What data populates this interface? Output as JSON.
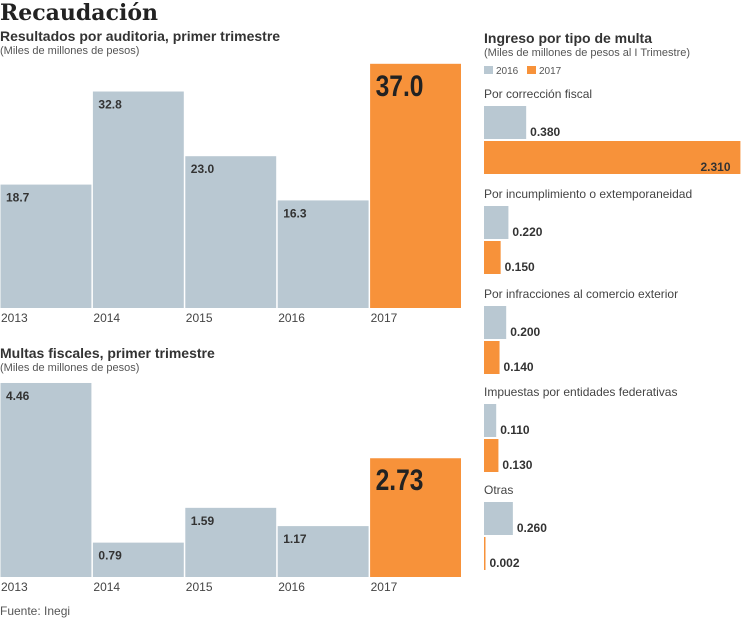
{
  "title": "Recaudación",
  "source": "Fuente: Inegi",
  "colors": {
    "gray": "#b9c8d2",
    "orange": "#f7923a"
  },
  "chart_data": [
    {
      "type": "bar",
      "title": "Resultados por auditoria, primer trimestre",
      "subtitle": "(Miles de millones de pesos)",
      "categories": [
        "2013",
        "2014",
        "2015",
        "2016",
        "2017"
      ],
      "values": [
        18.7,
        32.8,
        23.0,
        16.3,
        37.0
      ],
      "labels": [
        "18.7",
        "32.8",
        "23.0",
        "16.3",
        "37.0"
      ],
      "highlight": "2017"
    },
    {
      "type": "bar",
      "title": "Multas fiscales, primer trimestre",
      "subtitle": "(Miles de millones de pesos)",
      "categories": [
        "2013",
        "2014",
        "2015",
        "2016",
        "2017"
      ],
      "values": [
        4.46,
        0.79,
        1.59,
        1.17,
        2.73
      ],
      "labels": [
        "4.46",
        "0.79",
        "1.59",
        "1.17",
        "2.73"
      ],
      "highlight": "2017"
    },
    {
      "type": "bar",
      "orientation": "horizontal",
      "title": "Ingreso por tipo de multa",
      "subtitle": "(Miles de millones de pesos al I Trimestre)",
      "legend": [
        "2016",
        "2017"
      ],
      "categories": [
        "Por corrección fiscal",
        "Por incumplimiento o extemporaneidad",
        "Por infracciones al comercio exterior",
        "Impuestas por entidades federativas",
        "Otras"
      ],
      "series": [
        {
          "name": "2016",
          "values": [
            0.38,
            0.22,
            0.2,
            0.11,
            0.26
          ],
          "labels": [
            "0.380",
            "0.220",
            "0.200",
            "0.110",
            "0.260"
          ]
        },
        {
          "name": "2017",
          "values": [
            2.31,
            0.15,
            0.14,
            0.13,
            0.002
          ],
          "labels": [
            "2.310",
            "0.150",
            "0.140",
            "0.130",
            "0.002"
          ]
        }
      ]
    }
  ]
}
